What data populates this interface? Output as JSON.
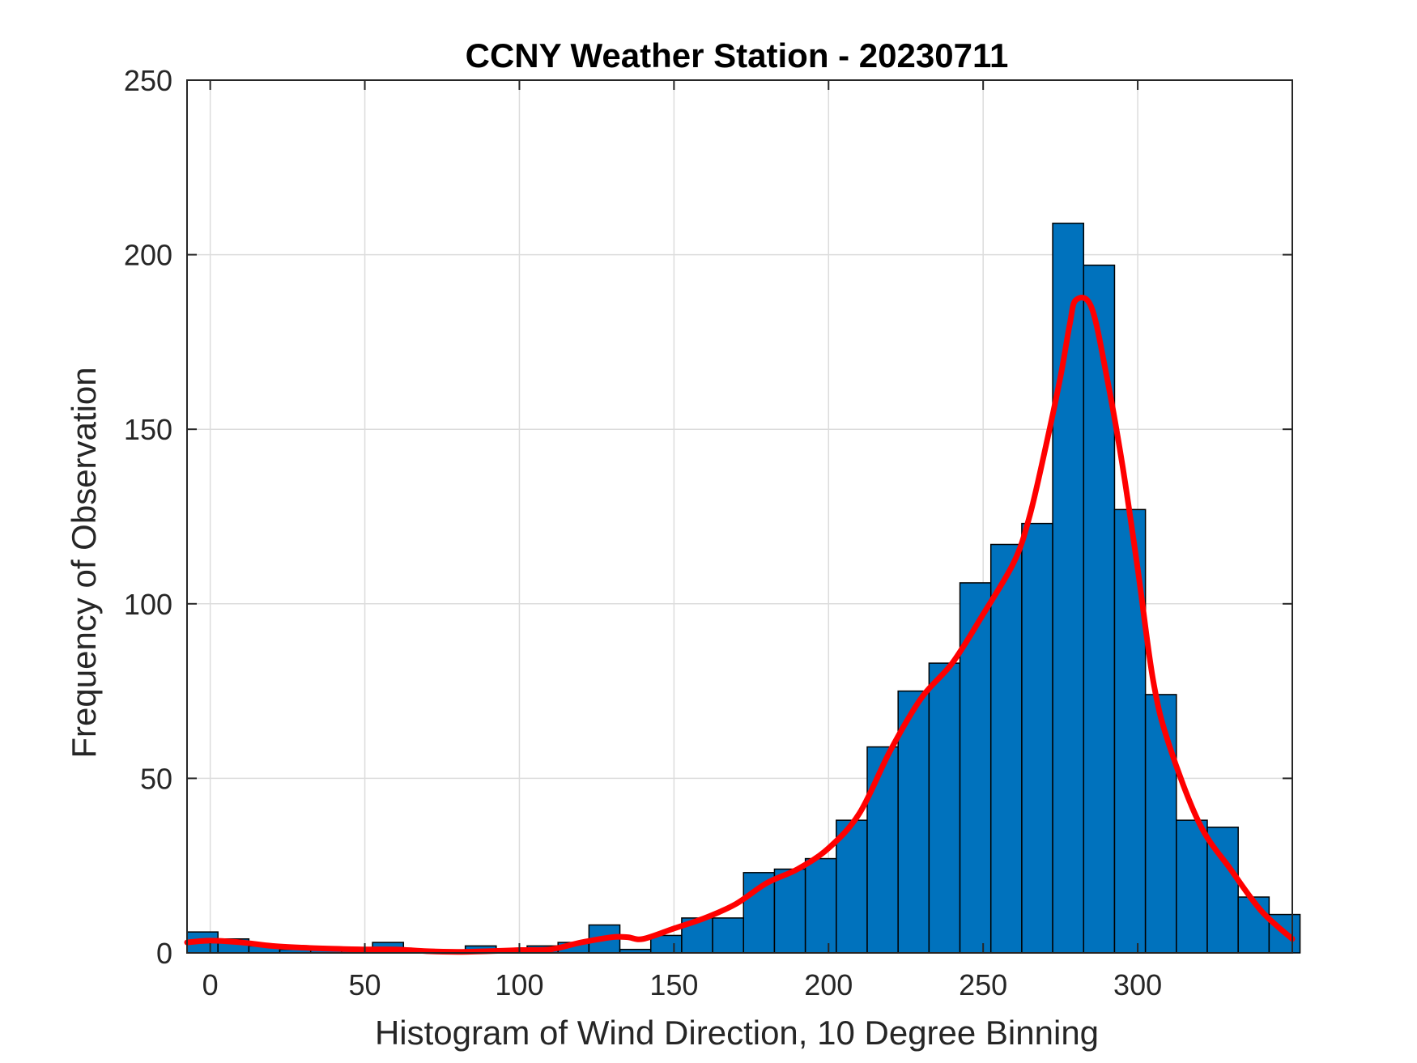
{
  "chart_data": {
    "type": "bar",
    "title": "CCNY Weather Station - 20230711",
    "xlabel": "Histogram of Wind Direction, 10 Degree Binning",
    "ylabel": "Frequency of Observation",
    "xlim": [
      -7.5,
      350
    ],
    "ylim": [
      0,
      250
    ],
    "xticks": [
      0,
      50,
      100,
      150,
      200,
      250,
      300
    ],
    "yticks": [
      0,
      50,
      100,
      150,
      200,
      250
    ],
    "grid": true,
    "bin_width": 10,
    "bins": [
      {
        "x0": 0,
        "x1": 10,
        "count": 6
      },
      {
        "x0": 10,
        "x1": 20,
        "count": 4
      },
      {
        "x0": 20,
        "x1": 30,
        "count": 2
      },
      {
        "x0": 30,
        "x1": 40,
        "count": 1
      },
      {
        "x0": 40,
        "x1": 50,
        "count": 1
      },
      {
        "x0": 50,
        "x1": 60,
        "count": 1
      },
      {
        "x0": 60,
        "x1": 70,
        "count": 3
      },
      {
        "x0": 70,
        "x1": 80,
        "count": 1
      },
      {
        "x0": 80,
        "x1": 90,
        "count": 0
      },
      {
        "x0": 90,
        "x1": 100,
        "count": 2
      },
      {
        "x0": 100,
        "x1": 110,
        "count": 1
      },
      {
        "x0": 110,
        "x1": 120,
        "count": 2
      },
      {
        "x0": 120,
        "x1": 130,
        "count": 3
      },
      {
        "x0": 130,
        "x1": 140,
        "count": 8
      },
      {
        "x0": 140,
        "x1": 150,
        "count": 1
      },
      {
        "x0": 150,
        "x1": 160,
        "count": 5
      },
      {
        "x0": 160,
        "x1": 170,
        "count": 10
      },
      {
        "x0": 170,
        "x1": 180,
        "count": 10
      },
      {
        "x0": 180,
        "x1": 190,
        "count": 23
      },
      {
        "x0": 190,
        "x1": 200,
        "count": 24
      },
      {
        "x0": 200,
        "x1": 210,
        "count": 27
      },
      {
        "x0": 210,
        "x1": 220,
        "count": 38
      },
      {
        "x0": 220,
        "x1": 230,
        "count": 59
      },
      {
        "x0": 230,
        "x1": 240,
        "count": 75
      },
      {
        "x0": 240,
        "x1": 250,
        "count": 83
      },
      {
        "x0": 250,
        "x1": 260,
        "count": 106
      },
      {
        "x0": 260,
        "x1": 270,
        "count": 117
      },
      {
        "x0": 270,
        "x1": 280,
        "count": 123
      },
      {
        "x0": 280,
        "x1": 290,
        "count": 209
      },
      {
        "x0": 290,
        "x1": 300,
        "count": 197
      },
      {
        "x0": 300,
        "x1": 310,
        "count": 127
      },
      {
        "x0": 310,
        "x1": 320,
        "count": 74
      },
      {
        "x0": 320,
        "x1": 330,
        "count": 38
      },
      {
        "x0": 330,
        "x1": 340,
        "count": 36
      },
      {
        "x0": 340,
        "x1": 350,
        "count": 16
      },
      {
        "x0": 350,
        "x1": 360,
        "count": 11
      }
    ],
    "fit_curve": {
      "x": [
        -7.5,
        0,
        10,
        20,
        30,
        40,
        50,
        60,
        70,
        80,
        90,
        100,
        110,
        120,
        130,
        135,
        140,
        150,
        160,
        170,
        180,
        190,
        200,
        210,
        220,
        230,
        240,
        250,
        260,
        265,
        270,
        275,
        278,
        280,
        285,
        290,
        295,
        300,
        305,
        310,
        320,
        330,
        340,
        350
      ],
      "y": [
        3,
        3.5,
        3,
        2,
        1.5,
        1.2,
        1,
        1,
        0.5,
        0.3,
        0.5,
        0.8,
        1,
        3,
        4.5,
        4.5,
        4,
        7,
        10,
        14,
        20,
        24,
        30,
        40,
        58,
        73,
        83,
        97,
        112,
        125,
        144,
        165,
        180,
        187,
        185,
        165,
        140,
        110,
        78,
        60,
        37,
        24,
        12,
        4
      ]
    },
    "colors": {
      "bar_fill": "#0072bd",
      "bar_edge": "#000000",
      "fit_line": "#ff0000",
      "grid": "#dcdcdc",
      "axis": "#262626"
    }
  }
}
